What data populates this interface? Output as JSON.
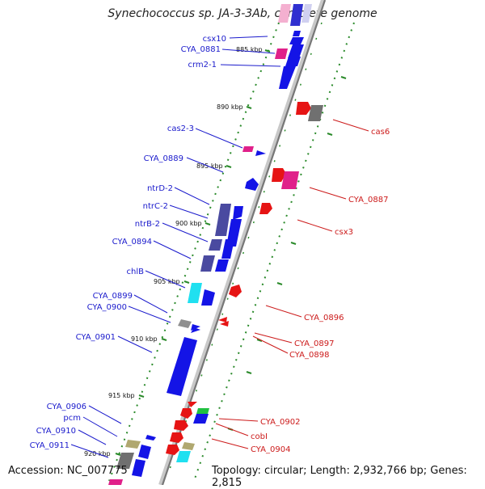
{
  "title": "Synechococcus sp. JA-3-3Ab, complete genome",
  "footer": {
    "accession": "Accession: NC_007775",
    "summary": "Topology: circular; Length: 2,932,766 bp; Genes: 2,815"
  },
  "colors": {
    "forward_gene": "#1414e6",
    "reverse_gene": "#e61414",
    "operon": "#4a4aa0",
    "cyan": "#20e0f0",
    "magenta": "#e0208a",
    "gray": "#909090",
    "khaki": "#b0a870",
    "backbone": "#888888",
    "dots": "#2a8a2a",
    "left_label": "#1a1acc",
    "right_label": "#cc1a1a"
  },
  "scale_labels": [
    "885 kbp",
    "890 kbp",
    "895 kbp",
    "900 kbp",
    "905 kbp",
    "910 kbp",
    "915 kbp",
    "920 kbp"
  ],
  "left_labels": [
    "csx10",
    "CYA_0881",
    "crm2-1",
    "cas2-3",
    "CYA_0889",
    "ntrD-2",
    "ntrC-2",
    "ntrB-2",
    "CYA_0894",
    "chlB",
    "CYA_0899",
    "CYA_0900",
    "CYA_0901",
    "CYA_0906",
    "pcm",
    "CYA_0910",
    "CYA_0911"
  ],
  "right_labels": [
    "cas6",
    "CYA_0887",
    "csx3",
    "CYA_0896",
    "CYA_0897",
    "CYA_0898",
    "CYA_0902",
    "cobI",
    "CYA_0904"
  ]
}
